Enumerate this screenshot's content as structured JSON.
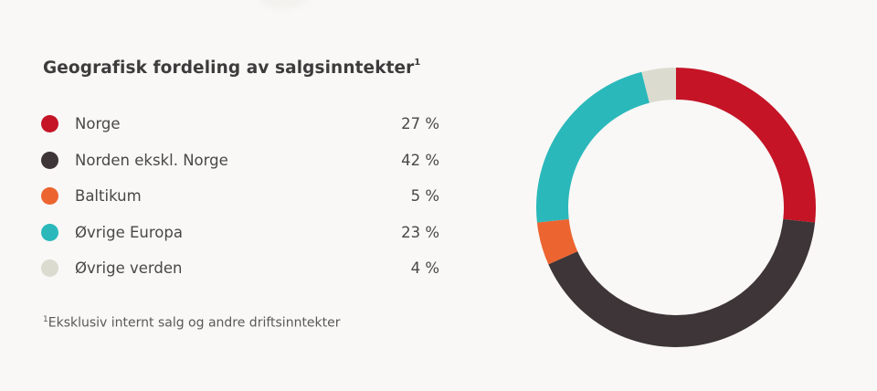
{
  "title": "Geografisk fordeling av salgsinntekter",
  "title_superscript": "1",
  "legend": [
    {
      "label": "Norge",
      "value": "27 %",
      "color": "#c41426"
    },
    {
      "label": "Norden ekskl. Norge",
      "value": "42 %",
      "color": "#3d3537"
    },
    {
      "label": "Baltikum",
      "value": "5 %",
      "color": "#ec6430"
    },
    {
      "label": "Øvrige Europa",
      "value": "23 %",
      "color": "#2bb8bb"
    },
    {
      "label": "Øvrige verden",
      "value": "4 %",
      "color": "#dcdbcf"
    }
  ],
  "footnote_superscript": "1",
  "footnote": "Eksklusiv internt salg og andre driftsinntekter",
  "chart_data": {
    "type": "pie",
    "subtype": "donut",
    "title": "Geografisk fordeling av salgsinntekter",
    "categories": [
      "Norge",
      "Norden ekskl. Norge",
      "Baltikum",
      "Øvrige Europa",
      "Øvrige verden"
    ],
    "values": [
      27,
      42,
      5,
      23,
      4
    ],
    "unit": "%",
    "colors": [
      "#c41426",
      "#3d3537",
      "#ec6430",
      "#2bb8bb",
      "#dcdbcf"
    ],
    "start_angle_deg": 0,
    "direction": "clockwise",
    "legend_position": "left",
    "footnote": "Eksklusiv internt salg og andre driftsinntekter"
  }
}
